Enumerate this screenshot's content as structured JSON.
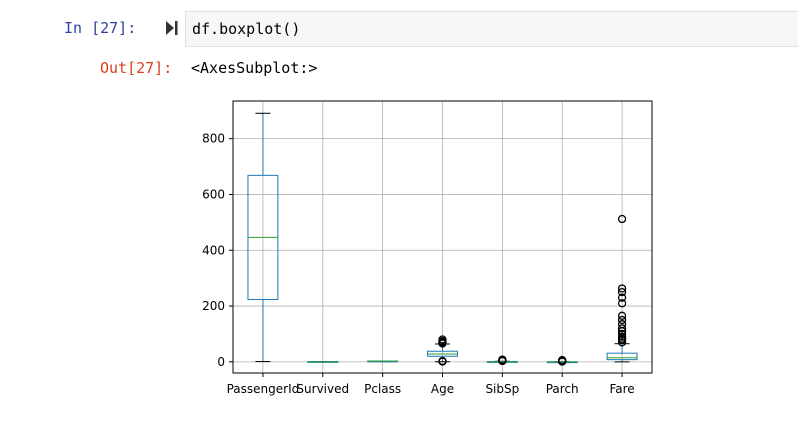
{
  "input": {
    "prompt": "In [27]:",
    "code": "df.boxplot()"
  },
  "output": {
    "prompt": "Out[27]:",
    "text": "<AxesSubplot:>"
  },
  "colors": {
    "box": "#1f77b4",
    "median": "#2ca02c",
    "whisker_cap": "#000000",
    "grid": "#b0b0b0",
    "in_prompt": "#303f9f",
    "out_prompt": "#d84315"
  },
  "chart_data": {
    "type": "boxplot",
    "title": "",
    "xlabel": "",
    "ylabel": "",
    "ylim": [
      -40,
      935
    ],
    "yticks": [
      0,
      200,
      400,
      600,
      800
    ],
    "grid": true,
    "categories": [
      "PassengerId",
      "Survived",
      "Pclass",
      "Age",
      "SibSp",
      "Parch",
      "Fare"
    ],
    "boxes": [
      {
        "name": "PassengerId",
        "min": 1,
        "q1": 223.5,
        "median": 446,
        "q3": 668.5,
        "max": 891,
        "outliers": []
      },
      {
        "name": "Survived",
        "min": 0,
        "q1": 0,
        "median": 0,
        "q3": 1,
        "max": 1,
        "outliers": []
      },
      {
        "name": "Pclass",
        "min": 1,
        "q1": 2,
        "median": 3,
        "q3": 3,
        "max": 3,
        "outliers": []
      },
      {
        "name": "Age",
        "min": 0.42,
        "q1": 20.1,
        "median": 28,
        "q3": 38,
        "max": 64,
        "outliers": [
          1,
          2,
          3,
          66,
          70,
          71,
          74,
          80
        ]
      },
      {
        "name": "SibSp",
        "min": 0,
        "q1": 0,
        "median": 0,
        "q3": 1,
        "max": 2,
        "outliers": [
          3,
          4,
          5,
          8
        ]
      },
      {
        "name": "Parch",
        "min": 0,
        "q1": 0,
        "median": 0,
        "q3": 0,
        "max": 0,
        "outliers": [
          1,
          2,
          3,
          4,
          5,
          6
        ]
      },
      {
        "name": "Fare",
        "min": 0,
        "q1": 7.9,
        "median": 14.45,
        "q3": 31,
        "max": 65,
        "outliers": [
          70,
          78,
          83,
          90,
          100,
          110,
          120,
          135,
          150,
          165,
          210,
          230,
          250,
          263,
          512
        ]
      }
    ]
  }
}
